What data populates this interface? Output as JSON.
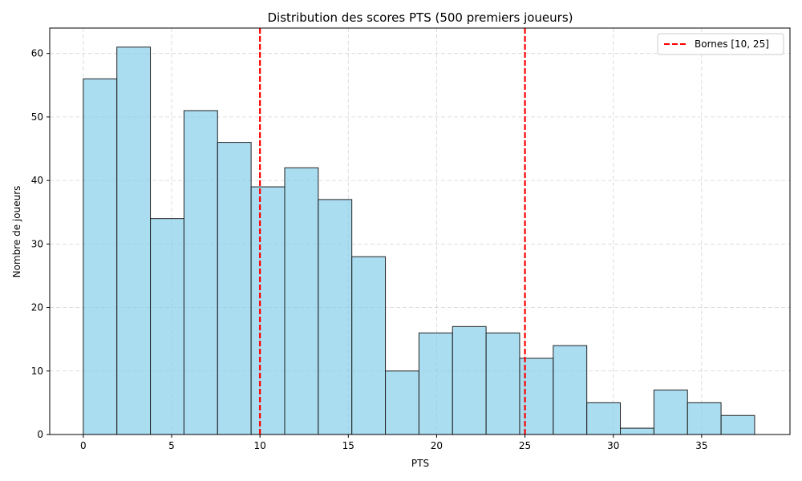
{
  "chart_data": {
    "type": "bar",
    "title": "Distribution des scores PTS (500 premiers joueurs)",
    "xlabel": "PTS",
    "ylabel": "Nombre de joueurs",
    "xlim": [
      -1.9,
      40
    ],
    "ylim": [
      0,
      64
    ],
    "xticks": [
      0,
      5,
      10,
      15,
      20,
      25,
      30,
      35
    ],
    "yticks": [
      0,
      10,
      20,
      30,
      40,
      50,
      60
    ],
    "grid": true,
    "legend_position": "top-right",
    "bin_edges": [
      0,
      1.9,
      3.8,
      5.7,
      7.6,
      9.5,
      11.4,
      13.3,
      15.2,
      17.1,
      19.0,
      20.9,
      22.8,
      24.7,
      26.6,
      28.5,
      30.4,
      32.3,
      34.2,
      36.1,
      38.0
    ],
    "counts": [
      56,
      61,
      34,
      51,
      46,
      39,
      42,
      37,
      28,
      10,
      16,
      17,
      16,
      12,
      14,
      5,
      1,
      7,
      5,
      3
    ],
    "bar_color": "#87ceeb",
    "bar_edge_color": "#222222",
    "lines": [
      {
        "x": 10,
        "color": "#ff0000",
        "style": "dashed"
      },
      {
        "x": 25,
        "color": "#ff0000",
        "style": "dashed"
      }
    ],
    "legend": [
      {
        "label": "Bornes [10, 25]",
        "color": "#ff0000",
        "style": "dashed"
      }
    ]
  }
}
